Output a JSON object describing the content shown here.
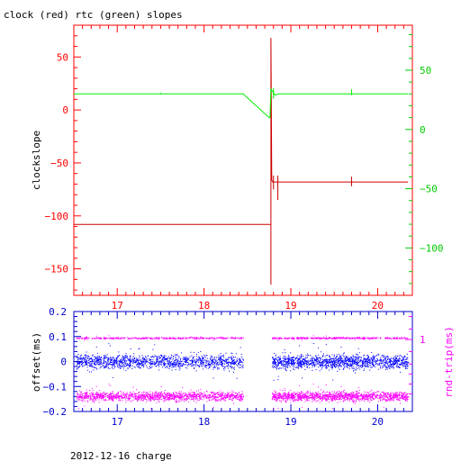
{
  "chart_data": [
    {
      "type": "line",
      "title": "clock (red) rtc (green) slopes",
      "ylabel": "clockslope",
      "xlim": [
        16.5,
        20.4
      ],
      "x_ticks": [
        17,
        18,
        19,
        20
      ],
      "ylim_left": [
        -175,
        80
      ],
      "ylim_right": [
        -140,
        88
      ],
      "y_ticks_left": [
        50,
        0,
        -50,
        -100,
        -150
      ],
      "y_ticks_right": [
        50,
        0,
        -50,
        -100
      ],
      "colors": {
        "axis": "#ff0000",
        "clock": "#cc0000",
        "rtc": "#00ee00",
        "right_axis": "#00cc00"
      },
      "series": [
        {
          "color": "#cc0000",
          "axis": "left",
          "points": [
            [
              16.5,
              -108
            ],
            [
              18.77,
              -108
            ],
            [
              18.77,
              -165
            ],
            [
              18.77,
              68
            ],
            [
              18.78,
              -66
            ],
            [
              18.79,
              -68
            ],
            [
              20.35,
              -68
            ]
          ],
          "spikes": [
            [
              18.8,
              -62,
              -75
            ],
            [
              18.85,
              -62,
              -85
            ],
            [
              19.7,
              -63,
              -72
            ]
          ]
        },
        {
          "color": "#00ee00",
          "axis": "right",
          "points": [
            [
              16.5,
              30
            ],
            [
              18.45,
              30
            ],
            [
              18.75,
              10
            ],
            [
              18.76,
              10
            ],
            [
              18.77,
              34
            ],
            [
              18.82,
              29
            ],
            [
              18.86,
              30
            ],
            [
              20.35,
              30
            ]
          ],
          "spikes": [
            [
              17.5,
              30,
              31
            ],
            [
              18.8,
              26,
              35
            ],
            [
              19.7,
              29,
              34
            ]
          ]
        }
      ]
    },
    {
      "type": "scatter",
      "ylabel": "offset(ms)",
      "y2label": "rnd-trip(ms)",
      "xlim": [
        16.5,
        20.4
      ],
      "x_ticks": [
        17,
        18,
        19,
        20
      ],
      "ylim": [
        -0.2,
        0.2
      ],
      "y_ticks": [
        0.2,
        0.1,
        0,
        -0.1,
        -0.2
      ],
      "y2_ticks": [
        1
      ],
      "colors": {
        "offset": "#0000ff",
        "rndtrip": "#ff00ff",
        "axis": "#0000cc",
        "right_axis": "#ff00ff"
      },
      "segments": [
        [
          16.53,
          18.45
        ],
        [
          18.78,
          20.35
        ]
      ],
      "series": [
        {
          "color": "#0000ff",
          "center": 0.0,
          "spread": 0.03,
          "style": "band"
        },
        {
          "color": "#ff00ff",
          "center": 0.095,
          "spread": 0.004,
          "style": "line"
        },
        {
          "color": "#ff00ff",
          "center": -0.138,
          "spread": 0.02,
          "style": "band"
        }
      ]
    }
  ],
  "footer": "2012-12-16 charge"
}
